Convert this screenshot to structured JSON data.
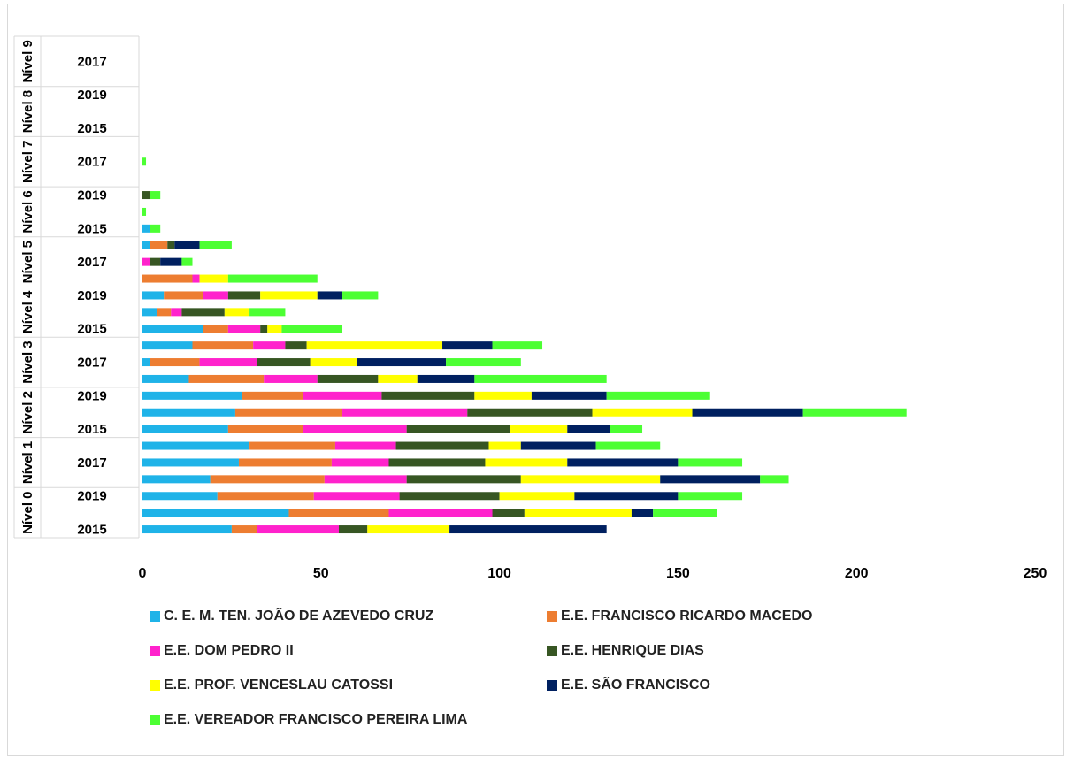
{
  "chart_data": {
    "type": "bar",
    "orientation": "horizontal",
    "stacked": true,
    "xlim": [
      0,
      250
    ],
    "x_ticks": [
      0,
      50,
      100,
      150,
      200,
      250
    ],
    "grid": false,
    "legend_position": "bottom",
    "rows": [
      {
        "group": "Nível 0",
        "year": "2015"
      },
      {
        "group": "Nível 0",
        "year": ""
      },
      {
        "group": "Nível 0",
        "year": "2019"
      },
      {
        "group": "Nível 1",
        "year": ""
      },
      {
        "group": "Nível 1",
        "year": "2017"
      },
      {
        "group": "Nível 1",
        "year": ""
      },
      {
        "group": "Nível 2",
        "year": "2015"
      },
      {
        "group": "Nível 2",
        "year": ""
      },
      {
        "group": "Nível 2",
        "year": "2019"
      },
      {
        "group": "Nível 3",
        "year": ""
      },
      {
        "group": "Nível 3",
        "year": "2017"
      },
      {
        "group": "Nível 3",
        "year": ""
      },
      {
        "group": "Nível 4",
        "year": "2015"
      },
      {
        "group": "Nível 4",
        "year": ""
      },
      {
        "group": "Nível 4",
        "year": "2019"
      },
      {
        "group": "Nível 5",
        "year": ""
      },
      {
        "group": "Nível 5",
        "year": "2017"
      },
      {
        "group": "Nível 5",
        "year": ""
      },
      {
        "group": "Nível 6",
        "year": "2015"
      },
      {
        "group": "Nível 6",
        "year": ""
      },
      {
        "group": "Nível 6",
        "year": "2019"
      },
      {
        "group": "Nível 7",
        "year": ""
      },
      {
        "group": "Nível 7",
        "year": "2017"
      },
      {
        "group": "Nível 7",
        "year": ""
      },
      {
        "group": "Nível 8",
        "year": "2015"
      },
      {
        "group": "Nível 8",
        "year": ""
      },
      {
        "group": "Nível 8",
        "year": "2019"
      },
      {
        "group": "Nível 9",
        "year": ""
      },
      {
        "group": "Nível 9",
        "year": "2017"
      },
      {
        "group": "Nível 9",
        "year": ""
      }
    ],
    "groups": [
      {
        "label": "Nível 0"
      },
      {
        "label": "Nível 1"
      },
      {
        "label": "Nível 2"
      },
      {
        "label": "Nível 3"
      },
      {
        "label": "Nível 4"
      },
      {
        "label": "Nível 5"
      },
      {
        "label": "Nível 6"
      },
      {
        "label": "Nível 7"
      },
      {
        "label": "Nível 8"
      },
      {
        "label": "Nível 9"
      }
    ],
    "series": [
      {
        "name": "C. E. M. TEN. JOÃO DE AZEVEDO CRUZ",
        "color": "#1fb3e8",
        "values": [
          25,
          41,
          21,
          19,
          27,
          30,
          24,
          26,
          28,
          13,
          2,
          14,
          17,
          4,
          6,
          0,
          0,
          2,
          2,
          0,
          0,
          0,
          0,
          0,
          0,
          0,
          0,
          0,
          0,
          0
        ]
      },
      {
        "name": "E.E.  FRANCISCO RICARDO MACEDO",
        "color": "#ed7d31",
        "values": [
          7,
          28,
          27,
          32,
          26,
          24,
          21,
          30,
          17,
          21,
          14,
          17,
          7,
          4,
          11,
          14,
          0,
          5,
          0,
          0,
          0,
          0,
          0,
          0,
          0,
          0,
          0,
          0,
          0,
          0
        ]
      },
      {
        "name": "E.E. DOM PEDRO II",
        "color": "#ff22cc",
        "values": [
          23,
          29,
          24,
          23,
          16,
          17,
          29,
          35,
          22,
          15,
          16,
          9,
          9,
          3,
          7,
          2,
          2,
          0,
          0,
          0,
          0,
          0,
          0,
          0,
          0,
          0,
          0,
          0,
          0,
          0
        ]
      },
      {
        "name": "E.E. HENRIQUE DIAS",
        "color": "#375623",
        "values": [
          8,
          9,
          28,
          32,
          27,
          26,
          29,
          35,
          26,
          17,
          15,
          6,
          2,
          12,
          9,
          0,
          3,
          2,
          0,
          0,
          2,
          0,
          0,
          0,
          0,
          0,
          0,
          0,
          0,
          0
        ]
      },
      {
        "name": "E.E. PROF. VENCESLAU CATOSSI",
        "color": "#ffff00",
        "values": [
          23,
          30,
          21,
          39,
          23,
          9,
          16,
          28,
          16,
          11,
          13,
          38,
          4,
          7,
          16,
          8,
          0,
          0,
          0,
          0,
          0,
          0,
          0,
          0,
          0,
          0,
          0,
          0,
          0,
          0
        ]
      },
      {
        "name": "E.E. SÃO FRANCISCO",
        "color": "#002060",
        "values": [
          44,
          6,
          29,
          28,
          31,
          21,
          12,
          31,
          21,
          16,
          25,
          14,
          0,
          0,
          7,
          0,
          6,
          7,
          0,
          0,
          0,
          0,
          0,
          0,
          0,
          0,
          0,
          0,
          0,
          0
        ]
      },
      {
        "name": "E.E. VEREADOR FRANCISCO PEREIRA LIMA",
        "color": "#4cff33",
        "values": [
          0,
          18,
          18,
          8,
          18,
          18,
          9,
          29,
          29,
          37,
          21,
          14,
          17,
          10,
          10,
          25,
          3,
          9,
          3,
          1,
          3,
          0,
          1,
          0,
          0,
          0,
          0,
          0,
          0,
          0
        ]
      }
    ]
  }
}
